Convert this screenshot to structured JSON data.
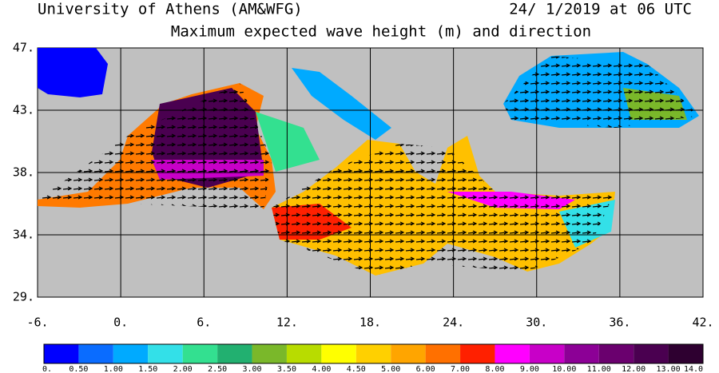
{
  "header": {
    "left": "University of Athens (AM&WFG)",
    "right": "24/ 1/2019 at 06 UTC",
    "title": "Maximum expected wave height (m) and direction"
  },
  "map": {
    "lat_labels": [
      "47.",
      "43.",
      "38.",
      "34.",
      "29."
    ],
    "lon_labels": [
      "-6.",
      "0.",
      "6.",
      "12.",
      "18.",
      "24.",
      "30.",
      "36.",
      "42."
    ]
  },
  "colorbar": {
    "colors": [
      "#0000ff",
      "#0a6cff",
      "#00aaff",
      "#33e0e8",
      "#33e090",
      "#22b070",
      "#7ab82a",
      "#b8dc00",
      "#ffff00",
      "#ffd000",
      "#ffa500",
      "#ff7000",
      "#ff2000",
      "#ff00ff",
      "#c800c8",
      "#8c0096",
      "#6a006e",
      "#4a0050",
      "#2e0030"
    ],
    "labels": [
      "0.",
      "0.50",
      "1.00",
      "1.50",
      "2.00",
      "2.50",
      "3.00",
      "3.50",
      "4.00",
      "4.50",
      "5.00",
      "6.00",
      "7.00",
      "8.00",
      "9.00",
      "10.00",
      "11.00",
      "12.00",
      "13.00",
      "14.0"
    ]
  }
}
